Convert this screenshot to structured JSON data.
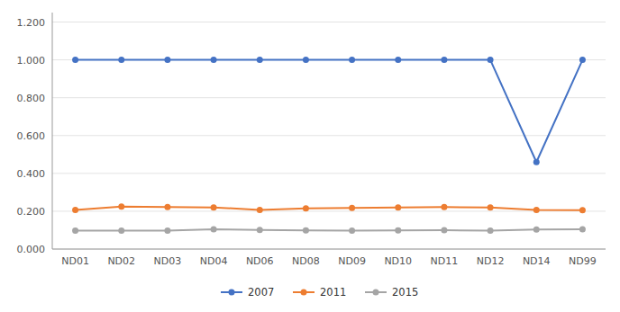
{
  "chart_data": {
    "type": "line",
    "categories": [
      "ND01",
      "ND02",
      "ND03",
      "ND04",
      "ND06",
      "ND08",
      "ND09",
      "ND10",
      "ND11",
      "ND12",
      "ND14",
      "ND99"
    ],
    "series": [
      {
        "name": "2007",
        "color": "#4472C4",
        "marker": "circle",
        "values": [
          1.0,
          1.0,
          1.0,
          1.0,
          1.0,
          1.0,
          1.0,
          1.0,
          1.0,
          1.0,
          0.46,
          1.0
        ]
      },
      {
        "name": "2011",
        "color": "#ED7D31",
        "marker": "circle",
        "values": [
          0.207,
          0.224,
          0.222,
          0.22,
          0.207,
          0.215,
          0.217,
          0.22,
          0.222,
          0.22,
          0.207,
          0.205
        ]
      },
      {
        "name": "2015",
        "color": "#A5A5A5",
        "marker": "circle",
        "values": [
          0.098,
          0.097,
          0.097,
          0.105,
          0.101,
          0.099,
          0.097,
          0.099,
          0.1,
          0.097,
          0.103,
          0.105
        ]
      }
    ],
    "ylim": [
      0.0,
      1.25
    ],
    "yticks": [
      {
        "value": 0.0,
        "label": "0.000"
      },
      {
        "value": 0.2,
        "label": "0.200"
      },
      {
        "value": 0.4,
        "label": "0.400"
      },
      {
        "value": 0.6,
        "label": "0.600"
      },
      {
        "value": 0.8,
        "label": "0.800"
      },
      {
        "value": 1.0,
        "label": "1.000"
      },
      {
        "value": 1.2,
        "label": "1.200"
      }
    ],
    "grid": true,
    "legend": "bottom"
  }
}
